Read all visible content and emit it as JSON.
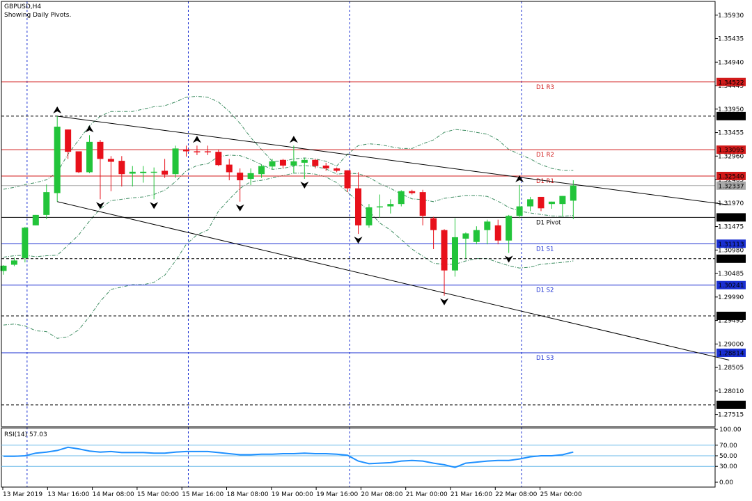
{
  "header": {
    "symbol": "GBPUSD,H4",
    "note": "Showing Daily Pivots."
  },
  "chart_data": {
    "type": "candlestick",
    "price_range": [
      1.2726,
      1.3622
    ],
    "y_ticks": [
      "1.35930",
      "1.35435",
      "1.34940",
      "1.34445",
      "1.33950",
      "1.33455",
      "1.32960",
      "1.32465",
      "1.31970",
      "1.31475",
      "1.30980",
      "1.30485",
      "1.29990",
      "1.29495",
      "1.29000",
      "1.28505",
      "1.28010",
      "1.27515"
    ],
    "x_labels": [
      "13 Mar 2019",
      "13 Mar 16:00",
      "14 Mar 08:00",
      "15 Mar 00:00",
      "15 Mar 16:00",
      "18 Mar 08:00",
      "19 Mar 00:00",
      "19 Mar 16:00",
      "20 Mar 08:00",
      "21 Mar 00:00",
      "21 Mar 16:00",
      "22 Mar 08:00",
      "25 Mar 00:00"
    ],
    "colors": {
      "bull": "#22c43a",
      "bear": "#e8101a",
      "pivot_resistance": "#d11a1a",
      "pivot_support": "#1a2fd1",
      "rsi": "#1e90ff",
      "grid": "#1a2fd1"
    },
    "candles": [
      {
        "o": 1.3054,
        "h": 1.3066,
        "l": 1.3046,
        "c": 1.3065
      },
      {
        "o": 1.3067,
        "h": 1.3082,
        "l": 1.3064,
        "c": 1.3076
      },
      {
        "o": 1.3081,
        "h": 1.3147,
        "l": 1.3072,
        "c": 1.3145
      },
      {
        "o": 1.315,
        "h": 1.3172,
        "l": 1.315,
        "c": 1.3172
      },
      {
        "o": 1.3172,
        "h": 1.3236,
        "l": 1.3163,
        "c": 1.322
      },
      {
        "o": 1.3218,
        "h": 1.338,
        "l": 1.32,
        "c": 1.3358
      },
      {
        "o": 1.3352,
        "h": 1.3352,
        "l": 1.329,
        "c": 1.3305
      },
      {
        "o": 1.3306,
        "h": 1.3306,
        "l": 1.326,
        "c": 1.3262
      },
      {
        "o": 1.3262,
        "h": 1.334,
        "l": 1.326,
        "c": 1.3326
      },
      {
        "o": 1.3326,
        "h": 1.333,
        "l": 1.3205,
        "c": 1.329
      },
      {
        "o": 1.329,
        "h": 1.3296,
        "l": 1.3222,
        "c": 1.3284
      },
      {
        "o": 1.3286,
        "h": 1.3296,
        "l": 1.3232,
        "c": 1.3258
      },
      {
        "o": 1.3259,
        "h": 1.3275,
        "l": 1.3232,
        "c": 1.3263
      },
      {
        "o": 1.326,
        "h": 1.3275,
        "l": 1.324,
        "c": 1.3263
      },
      {
        "o": 1.3261,
        "h": 1.3272,
        "l": 1.3205,
        "c": 1.3263
      },
      {
        "o": 1.3265,
        "h": 1.329,
        "l": 1.325,
        "c": 1.3257
      },
      {
        "o": 1.3258,
        "h": 1.3318,
        "l": 1.325,
        "c": 1.3312
      },
      {
        "o": 1.331,
        "h": 1.3318,
        "l": 1.3295,
        "c": 1.3306
      },
      {
        "o": 1.3306,
        "h": 1.3318,
        "l": 1.3298,
        "c": 1.3305
      },
      {
        "o": 1.3306,
        "h": 1.3318,
        "l": 1.3298,
        "c": 1.3305
      },
      {
        "o": 1.3305,
        "h": 1.331,
        "l": 1.3275,
        "c": 1.3277
      },
      {
        "o": 1.3278,
        "h": 1.329,
        "l": 1.3245,
        "c": 1.3262
      },
      {
        "o": 1.3261,
        "h": 1.327,
        "l": 1.32,
        "c": 1.3245
      },
      {
        "o": 1.3248,
        "h": 1.327,
        "l": 1.3235,
        "c": 1.326
      },
      {
        "o": 1.3258,
        "h": 1.3278,
        "l": 1.325,
        "c": 1.3275
      },
      {
        "o": 1.3274,
        "h": 1.329,
        "l": 1.3268,
        "c": 1.3285
      },
      {
        "o": 1.3288,
        "h": 1.329,
        "l": 1.327,
        "c": 1.3276
      },
      {
        "o": 1.3276,
        "h": 1.3318,
        "l": 1.326,
        "c": 1.3285
      },
      {
        "o": 1.3282,
        "h": 1.3292,
        "l": 1.3248,
        "c": 1.3288
      },
      {
        "o": 1.3288,
        "h": 1.329,
        "l": 1.327,
        "c": 1.3275
      },
      {
        "o": 1.3276,
        "h": 1.3282,
        "l": 1.3265,
        "c": 1.327
      },
      {
        "o": 1.327,
        "h": 1.3272,
        "l": 1.3262,
        "c": 1.3265
      },
      {
        "o": 1.3266,
        "h": 1.3266,
        "l": 1.322,
        "c": 1.3228
      },
      {
        "o": 1.3228,
        "h": 1.3262,
        "l": 1.3132,
        "c": 1.315
      },
      {
        "o": 1.315,
        "h": 1.3195,
        "l": 1.3145,
        "c": 1.3188
      },
      {
        "o": 1.3188,
        "h": 1.3215,
        "l": 1.3166,
        "c": 1.319
      },
      {
        "o": 1.319,
        "h": 1.3205,
        "l": 1.3175,
        "c": 1.3195
      },
      {
        "o": 1.3195,
        "h": 1.3224,
        "l": 1.319,
        "c": 1.3222
      },
      {
        "o": 1.3222,
        "h": 1.3225,
        "l": 1.3215,
        "c": 1.3218
      },
      {
        "o": 1.322,
        "h": 1.3225,
        "l": 1.315,
        "c": 1.317
      },
      {
        "o": 1.3165,
        "h": 1.3168,
        "l": 1.31,
        "c": 1.314
      },
      {
        "o": 1.314,
        "h": 1.3142,
        "l": 1.3002,
        "c": 1.3055
      },
      {
        "o": 1.3055,
        "h": 1.3165,
        "l": 1.3042,
        "c": 1.3125
      },
      {
        "o": 1.3122,
        "h": 1.3135,
        "l": 1.308,
        "c": 1.3133
      },
      {
        "o": 1.3115,
        "h": 1.3148,
        "l": 1.311,
        "c": 1.314
      },
      {
        "o": 1.314,
        "h": 1.3162,
        "l": 1.311,
        "c": 1.3158
      },
      {
        "o": 1.315,
        "h": 1.3162,
        "l": 1.311,
        "c": 1.3118
      },
      {
        "o": 1.3118,
        "h": 1.3172,
        "l": 1.3092,
        "c": 1.317
      },
      {
        "o": 1.317,
        "h": 1.3235,
        "l": 1.3165,
        "c": 1.319
      },
      {
        "o": 1.319,
        "h": 1.321,
        "l": 1.318,
        "c": 1.3205
      },
      {
        "o": 1.321,
        "h": 1.321,
        "l": 1.318,
        "c": 1.3186
      },
      {
        "o": 1.3195,
        "h": 1.32,
        "l": 1.3185,
        "c": 1.32
      },
      {
        "o": 1.3195,
        "h": 1.3212,
        "l": 1.3168,
        "c": 1.3212
      },
      {
        "o": 1.3202,
        "h": 1.3245,
        "l": 1.3163,
        "c": 1.3234
      }
    ],
    "bands": {
      "upper": [
        1.3226,
        1.323,
        1.3236,
        1.324,
        1.3246,
        1.3262,
        1.33,
        1.333,
        1.336,
        1.338,
        1.339,
        1.339,
        1.339,
        1.3395,
        1.34,
        1.3402,
        1.341,
        1.342,
        1.3422,
        1.342,
        1.341,
        1.339,
        1.3365,
        1.3335,
        1.331,
        1.3285,
        1.3285,
        1.329,
        1.3292,
        1.329,
        1.3285,
        1.3275,
        1.33,
        1.3318,
        1.3322,
        1.332,
        1.3316,
        1.3312,
        1.3312,
        1.3322,
        1.333,
        1.3346,
        1.3352,
        1.335,
        1.3346,
        1.3342,
        1.333,
        1.331,
        1.33,
        1.329,
        1.3278,
        1.327,
        1.3266,
        1.3266
      ],
      "lower": [
        1.294,
        1.2942,
        1.2938,
        1.2928,
        1.2926,
        1.2912,
        1.2915,
        1.293,
        1.2958,
        1.299,
        1.3015,
        1.302,
        1.3025,
        1.3025,
        1.303,
        1.3045,
        1.3075,
        1.311,
        1.313,
        1.314,
        1.318,
        1.3205,
        1.3228,
        1.3242,
        1.3245,
        1.325,
        1.3255,
        1.326,
        1.326,
        1.3258,
        1.3252,
        1.324,
        1.322,
        1.32,
        1.318,
        1.3155,
        1.314,
        1.312,
        1.31,
        1.3085,
        1.307,
        1.3068,
        1.3068,
        1.3075,
        1.308,
        1.308,
        1.3072,
        1.3065,
        1.306,
        1.3062,
        1.3068,
        1.307,
        1.3072,
        1.3075
      ],
      "middle": [
        1.3083,
        1.3086,
        1.3087,
        1.3084,
        1.3086,
        1.3087,
        1.3108,
        1.313,
        1.3159,
        1.3185,
        1.3202,
        1.3205,
        1.3208,
        1.321,
        1.3215,
        1.3224,
        1.3242,
        1.3265,
        1.3276,
        1.328,
        1.3295,
        1.3298,
        1.3297,
        1.3289,
        1.3278,
        1.3268,
        1.327,
        1.3275,
        1.3276,
        1.3274,
        1.3269,
        1.3258,
        1.326,
        1.3259,
        1.3251,
        1.3238,
        1.3228,
        1.3216,
        1.3206,
        1.3204,
        1.32,
        1.3207,
        1.321,
        1.3213,
        1.3213,
        1.3211,
        1.3201,
        1.3188,
        1.318,
        1.3176,
        1.3173,
        1.317,
        1.3169,
        1.3171
      ]
    },
    "pivot_levels": [
      {
        "name": "R3",
        "label": "D1 R3",
        "value": 1.34522,
        "tag": "1.34522",
        "kind": "resistance"
      },
      {
        "name": "R2",
        "label": "D1 R2",
        "value": 1.33095,
        "tag": "1.33095",
        "kind": "resistance"
      },
      {
        "name": "R1",
        "label": "D1 R1",
        "value": 1.3254,
        "tag": "1.32540",
        "kind": "resistance"
      },
      {
        "name": "Pivot",
        "label": "D1 Pivot",
        "value": 1.31668,
        "tag": "1.31668",
        "kind": "pivot"
      },
      {
        "name": "S1",
        "label": "D1 S1",
        "value": 1.31113,
        "tag": "1.31113",
        "kind": "support"
      },
      {
        "name": "S2",
        "label": "D1 S2",
        "value": 1.30241,
        "tag": "1.30241",
        "kind": "support"
      },
      {
        "name": "S3",
        "label": "D1 S3",
        "value": 1.28814,
        "tag": "1.28814",
        "kind": "support"
      }
    ],
    "dashed_levels": [
      {
        "value": 1.33802,
        "tag": "1.33802"
      },
      {
        "value": 1.30797,
        "tag": "1.30797"
      },
      {
        "value": 1.29592,
        "tag": "1.29592"
      },
      {
        "value": 1.27717,
        "tag": "1.27717"
      }
    ],
    "current_price": {
      "value": 1.32337,
      "tag": "1.32337"
    },
    "trendlines": [
      {
        "i1": 5,
        "p1": 1.338,
        "i2": 67.5,
        "p2": 1.3193
      },
      {
        "i1": 5,
        "p1": 1.32,
        "i2": 67.5,
        "p2": 1.2866
      }
    ],
    "fractals": [
      {
        "i": 5,
        "dir": "up"
      },
      {
        "i": 8,
        "dir": "up"
      },
      {
        "i": 9,
        "dir": "down"
      },
      {
        "i": 14,
        "dir": "down"
      },
      {
        "i": 18,
        "dir": "up"
      },
      {
        "i": 22,
        "dir": "down"
      },
      {
        "i": 27,
        "dir": "up"
      },
      {
        "i": 28,
        "dir": "down"
      },
      {
        "i": 33,
        "dir": "down"
      },
      {
        "i": 41,
        "dir": "down"
      },
      {
        "i": 47,
        "dir": "down"
      },
      {
        "i": 48,
        "dir": "up"
      }
    ],
    "rsi": {
      "label": "RSI(14) 57.03",
      "y_ticks": [
        "100.00",
        "70.00",
        "50.00",
        "30.00",
        "0.00"
      ],
      "levels": [
        70,
        50,
        30
      ],
      "values": [
        49,
        49,
        50,
        55,
        57,
        60,
        66,
        63,
        59,
        57,
        58,
        56,
        56,
        56,
        55,
        55,
        57,
        58,
        58,
        58,
        56,
        54,
        52,
        52,
        53,
        53,
        54,
        54,
        55,
        54,
        54,
        53,
        51,
        40,
        35,
        36,
        37,
        40,
        41,
        40,
        36,
        33,
        28,
        36,
        38,
        40,
        41,
        41,
        44,
        48,
        50,
        50,
        52,
        57
      ]
    },
    "session_separators": [
      2,
      17,
      32,
      48
    ]
  }
}
